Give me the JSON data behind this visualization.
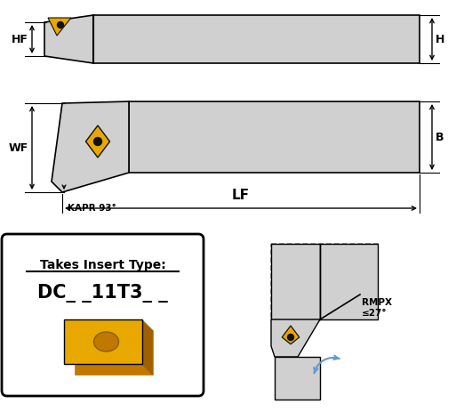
{
  "bg_color": "#ffffff",
  "tool_gray": "#d0d0d0",
  "tool_gray_dark": "#b0b0b0",
  "tool_outline": "#000000",
  "insert_yellow": "#E8A800",
  "insert_dark": "#C07800",
  "insert_black": "#111111",
  "blue_highlight": "#aaddff",
  "dashed_color": "#888888",
  "arrow_blue": "#6699cc",
  "label_HF": "HF",
  "label_H": "H",
  "label_WF": "WF",
  "label_B": "B",
  "label_LF": "LF",
  "label_KAPR": "KAPR 93°",
  "label_RMPX": "RMPX",
  "label_RMPX2": "≤27°",
  "insert_label": "Takes Insert Type:",
  "insert_code": "DC_ _11T3_ _",
  "font_size_label": 9,
  "font_size_insert": 10,
  "font_size_code": 13
}
